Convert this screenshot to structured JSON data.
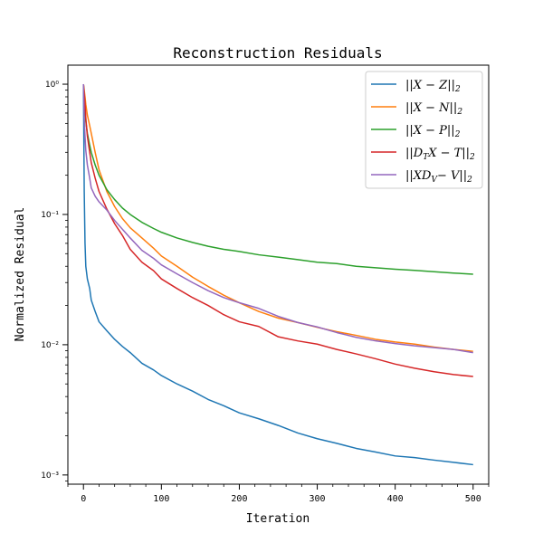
{
  "chart_data": {
    "type": "line",
    "title": "Reconstruction Residuals",
    "xlabel": "Iteration",
    "ylabel": "Normalized Residual",
    "xlim": [
      -20,
      520
    ],
    "ylim": [
      0.00085,
      1.4
    ],
    "yscale": "log",
    "grid": false,
    "legend_position": "top-right",
    "x_ticks": [
      0,
      100,
      200,
      300,
      400,
      500
    ],
    "x_tick_labels": [
      "0",
      "100",
      "200",
      "300",
      "400",
      "500"
    ],
    "y_ticks": [
      0.001,
      0.01,
      0.1,
      1
    ],
    "y_tick_labels": [
      "10⁻³",
      "10⁻²",
      "10⁻¹",
      "10⁰"
    ],
    "x": [
      0,
      1,
      2,
      3,
      5,
      8,
      10,
      15,
      20,
      30,
      40,
      50,
      60,
      75,
      90,
      100,
      120,
      140,
      160,
      180,
      200,
      225,
      250,
      275,
      300,
      325,
      350,
      375,
      400,
      425,
      450,
      475,
      500
    ],
    "series": [
      {
        "name": "||X − Z||₂",
        "label_main": "||X − Z||",
        "label_sub": "2",
        "color": "#1f77b4",
        "values": [
          1.0,
          0.15,
          0.06,
          0.04,
          0.032,
          0.027,
          0.022,
          0.018,
          0.015,
          0.0128,
          0.011,
          0.0097,
          0.0087,
          0.0072,
          0.0064,
          0.0058,
          0.005,
          0.0044,
          0.0038,
          0.0034,
          0.003,
          0.0027,
          0.0024,
          0.0021,
          0.0019,
          0.00175,
          0.0016,
          0.0015,
          0.0014,
          0.00136,
          0.0013,
          0.00125,
          0.0012
        ]
      },
      {
        "name": "||X − N||₂",
        "label_main": "||X − N||",
        "label_sub": "2",
        "color": "#ff7f0e",
        "values": [
          1.0,
          0.9,
          0.8,
          0.7,
          0.58,
          0.48,
          0.42,
          0.3,
          0.22,
          0.15,
          0.115,
          0.093,
          0.079,
          0.066,
          0.055,
          0.048,
          0.04,
          0.033,
          0.028,
          0.024,
          0.021,
          0.018,
          0.016,
          0.0148,
          0.0136,
          0.0126,
          0.0118,
          0.011,
          0.0105,
          0.0101,
          0.0096,
          0.0092,
          0.0089
        ]
      },
      {
        "name": "||X − P||₂",
        "label_main": "||X − P||",
        "label_sub": "2",
        "color": "#2ca02c",
        "values": [
          1.0,
          0.75,
          0.62,
          0.52,
          0.42,
          0.34,
          0.3,
          0.24,
          0.2,
          0.155,
          0.13,
          0.112,
          0.1,
          0.087,
          0.078,
          0.073,
          0.066,
          0.061,
          0.057,
          0.054,
          0.052,
          0.049,
          0.047,
          0.045,
          0.043,
          0.042,
          0.04,
          0.039,
          0.038,
          0.0372,
          0.0363,
          0.0355,
          0.0348
        ]
      },
      {
        "name": "||D_T X − T||₂",
        "label_main": "||D",
        "label_mid_sub": "T",
        "label_rest": "X − T||",
        "label_sub": "2",
        "color": "#d62728",
        "values": [
          1.0,
          0.85,
          0.7,
          0.55,
          0.4,
          0.3,
          0.25,
          0.19,
          0.15,
          0.11,
          0.085,
          0.069,
          0.054,
          0.043,
          0.037,
          0.032,
          0.027,
          0.023,
          0.02,
          0.017,
          0.015,
          0.0138,
          0.0115,
          0.0107,
          0.0101,
          0.0092,
          0.0085,
          0.0078,
          0.0071,
          0.0066,
          0.0062,
          0.0059,
          0.0057
        ]
      },
      {
        "name": "||XD_V − V||₂",
        "label_main": "||XD",
        "label_mid_sub": "V",
        "label_rest": "− V||",
        "label_sub": "2",
        "color": "#9467bd",
        "values": [
          1.0,
          0.55,
          0.4,
          0.31,
          0.24,
          0.19,
          0.16,
          0.138,
          0.125,
          0.108,
          0.09,
          0.077,
          0.066,
          0.053,
          0.046,
          0.041,
          0.035,
          0.03,
          0.026,
          0.023,
          0.021,
          0.019,
          0.0165,
          0.0148,
          0.0137,
          0.0124,
          0.0114,
          0.0107,
          0.0102,
          0.0098,
          0.0095,
          0.0092,
          0.0087
        ]
      }
    ]
  }
}
